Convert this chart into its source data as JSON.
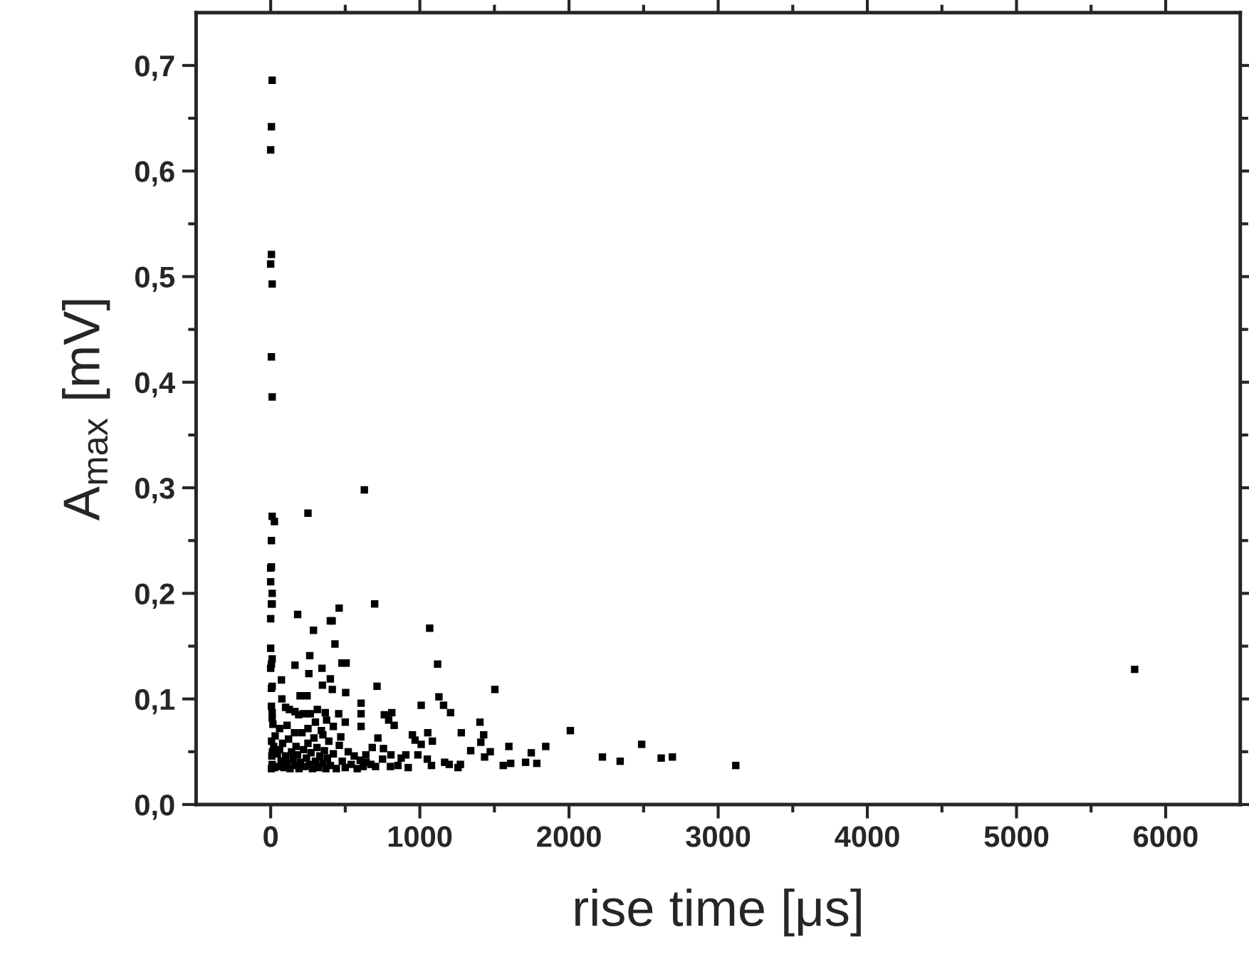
{
  "chart_data": {
    "type": "scatter",
    "xlabel": "rise time [μs]",
    "ylabel": "A$_{max}$ [mV]",
    "xlim": [
      -500,
      6500
    ],
    "ylim": [
      0,
      0.75
    ],
    "xticks": [
      0,
      1000,
      2000,
      3000,
      4000,
      5000,
      6000
    ],
    "yticks": [
      {
        "value": 0,
        "label": "0,0"
      },
      {
        "value": 0.1,
        "label": "0,1"
      },
      {
        "value": 0.2,
        "label": "0,2"
      },
      {
        "value": 0.3,
        "label": "0,3"
      },
      {
        "value": 0.4,
        "label": "0,4"
      },
      {
        "value": 0.5,
        "label": "0,5"
      },
      {
        "value": 0.6,
        "label": "0,6"
      },
      {
        "value": 0.7,
        "label": "0,7"
      }
    ],
    "marker": "square",
    "grid": false,
    "legend": false,
    "series": [
      {
        "color": "#000000",
        "x": [
          10,
          5,
          0,
          5,
          0,
          10,
          5,
          10,
          628,
          250,
          10,
          25,
          5,
          5,
          0,
          0,
          10,
          5,
          10,
          0,
          697,
          181,
          459,
          412,
          400,
          287,
          1066,
          431,
          0,
          10,
          5,
          0,
          262,
          163,
          478,
          506,
          1119,
          344,
          256,
          72,
          400,
          347,
          413,
          10,
          5,
          713,
          1503,
          244,
          197,
          503,
          606,
          606,
          606,
          1128,
          1009,
          1159,
          1206,
          75,
          100,
          125,
          163,
          188,
          219,
          266,
          313,
          366,
          456,
          375,
          762,
          812,
          828,
          791,
          1403,
          10,
          5,
          1278,
          1428,
          1409,
          1472,
          1341,
          1434,
          2009,
          1597,
          1747,
          1844,
          1609,
          1559,
          1709,
          1784,
          2224,
          950,
          968,
          1053,
          1084,
          1009,
          987,
          1050,
          1078,
          1166,
          1197,
          1256,
          1272,
          806,
          750,
          875,
          906,
          853,
          803,
          922,
          719,
          681,
          756,
          638,
          672,
          703,
          2343,
          2487,
          2618,
          2693,
          3118,
          5792,
          5,
          10,
          8,
          12,
          20,
          6,
          25,
          45,
          50,
          60,
          70,
          80,
          90,
          100,
          110,
          120,
          130,
          140,
          150,
          160,
          170,
          180,
          190,
          200,
          210,
          220,
          230,
          240,
          250,
          260,
          270,
          280,
          290,
          300,
          310,
          320,
          330,
          340,
          350,
          360,
          370,
          380,
          390,
          400,
          420,
          440,
          460,
          480,
          500,
          520,
          540,
          560,
          580,
          600,
          620,
          640,
          30,
          60,
          110,
          160,
          250,
          300,
          350,
          420,
          470,
          500,
          15,
          10
        ],
        "values": [
          0.686,
          0.642,
          0.62,
          0.521,
          0.512,
          0.493,
          0.424,
          0.386,
          0.298,
          0.276,
          0.273,
          0.268,
          0.25,
          0.225,
          0.224,
          0.211,
          0.2,
          0.19,
          0.19,
          0.176,
          0.19,
          0.18,
          0.186,
          0.174,
          0.174,
          0.165,
          0.167,
          0.152,
          0.148,
          0.138,
          0.133,
          0.129,
          0.141,
          0.132,
          0.134,
          0.134,
          0.133,
          0.129,
          0.124,
          0.118,
          0.119,
          0.113,
          0.109,
          0.112,
          0.11,
          0.112,
          0.109,
          0.103,
          0.103,
          0.106,
          0.096,
          0.086,
          0.074,
          0.102,
          0.094,
          0.094,
          0.087,
          0.1,
          0.092,
          0.09,
          0.088,
          0.085,
          0.086,
          0.086,
          0.09,
          0.087,
          0.086,
          0.08,
          0.085,
          0.087,
          0.075,
          0.08,
          0.078,
          0.087,
          0.093,
          0.068,
          0.066,
          0.059,
          0.05,
          0.051,
          0.045,
          0.07,
          0.055,
          0.049,
          0.055,
          0.039,
          0.037,
          0.04,
          0.039,
          0.045,
          0.066,
          0.061,
          0.068,
          0.06,
          0.057,
          0.047,
          0.043,
          0.037,
          0.04,
          0.038,
          0.035,
          0.038,
          0.047,
          0.043,
          0.044,
          0.047,
          0.037,
          0.036,
          0.035,
          0.063,
          0.054,
          0.053,
          0.047,
          0.038,
          0.036,
          0.041,
          0.057,
          0.044,
          0.045,
          0.037,
          0.128,
          0.034,
          0.038,
          0.046,
          0.05,
          0.055,
          0.06,
          0.035,
          0.048,
          0.036,
          0.052,
          0.041,
          0.058,
          0.035,
          0.046,
          0.039,
          0.062,
          0.034,
          0.05,
          0.043,
          0.037,
          0.055,
          0.047,
          0.034,
          0.04,
          0.068,
          0.052,
          0.036,
          0.044,
          0.058,
          0.038,
          0.049,
          0.034,
          0.063,
          0.041,
          0.054,
          0.035,
          0.046,
          0.07,
          0.039,
          0.051,
          0.034,
          0.044,
          0.06,
          0.037,
          0.048,
          0.034,
          0.056,
          0.041,
          0.035,
          0.05,
          0.038,
          0.046,
          0.034,
          0.042,
          0.036,
          0.04,
          0.065,
          0.072,
          0.075,
          0.068,
          0.072,
          0.078,
          0.066,
          0.074,
          0.064,
          0.078,
          0.076,
          0.082
        ]
      }
    ]
  }
}
